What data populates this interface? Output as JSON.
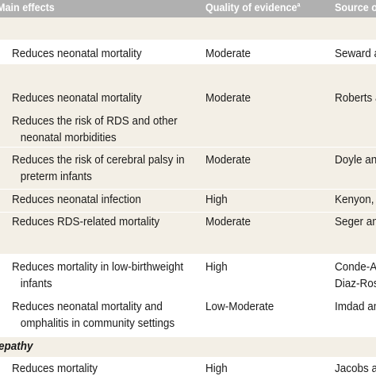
{
  "header": {
    "main_effects": "Main effects",
    "quality": "Quality of evidence",
    "quality_sup": "a",
    "source": "Source of"
  },
  "section_pathy": "epathy",
  "rows": [
    {
      "effect": [
        "Reduces neonatal mortality"
      ],
      "quality": "Moderate",
      "source": [
        "Seward a"
      ]
    },
    {
      "effect": [
        "Reduces neonatal mortality"
      ],
      "quality": "Moderate",
      "source": [
        "Roberts a"
      ]
    },
    {
      "effect": [
        "Reduces the risk of RDS and other",
        "neonatal morbidities"
      ],
      "quality": "",
      "source": [
        ""
      ]
    },
    {
      "effect": [
        "Reduces the risk of cerebral palsy in",
        "preterm infants"
      ],
      "quality": "Moderate",
      "source": [
        "Doyle and"
      ]
    },
    {
      "effect": [
        "Reduces neonatal infection"
      ],
      "quality": "High",
      "source": [
        "Kenyon, I"
      ]
    },
    {
      "effect": [
        "Reduces RDS-related mortality"
      ],
      "quality": "Moderate",
      "source": [
        "Seger an"
      ]
    },
    {
      "effect": [
        "Reduces mortality in low-birthweight",
        "infants"
      ],
      "quality": "High",
      "source": [
        "Conde-Ag",
        "Diaz-Ros"
      ]
    },
    {
      "effect": [
        "Reduces neonatal mortality and",
        "omphalitis in community settings"
      ],
      "quality": "Low-Moderate",
      "source": [
        "Imdad an"
      ]
    },
    {
      "effect": [
        "Reduces mortality"
      ],
      "quality": "High",
      "source": [
        "Jacobs a"
      ]
    }
  ]
}
